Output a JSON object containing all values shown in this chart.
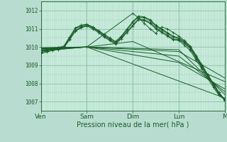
{
  "title": "Pression niveau de la mer( hPa )",
  "bg_color": "#b8ddd0",
  "plot_bg_color": "#c8eede",
  "grid_color_major": "#88bbaa",
  "grid_color_minor": "#a8ccbc",
  "line_color": "#1a5c2a",
  "ylim": [
    1006.5,
    1012.5
  ],
  "yticks": [
    1007,
    1008,
    1009,
    1010,
    1011,
    1012
  ],
  "xlim": [
    0,
    96
  ],
  "xtick_labels": [
    "Ven",
    "Sam",
    "Dim",
    "Lun",
    "M"
  ],
  "xtick_positions": [
    0,
    24,
    48,
    72,
    96
  ],
  "lines": [
    {
      "x": [
        0,
        3,
        6,
        9,
        12,
        15,
        18,
        21,
        24,
        27,
        30,
        33,
        36,
        39,
        42,
        45,
        48,
        51,
        54,
        57,
        60,
        63,
        66,
        69,
        72,
        75,
        78,
        81,
        84,
        87,
        90,
        93,
        96
      ],
      "y": [
        1009.8,
        1009.85,
        1009.9,
        1009.95,
        1010.0,
        1010.5,
        1011.0,
        1011.15,
        1011.2,
        1011.1,
        1010.9,
        1010.7,
        1010.5,
        1010.3,
        1010.6,
        1011.0,
        1011.4,
        1011.7,
        1011.65,
        1011.5,
        1011.2,
        1011.0,
        1010.8,
        1010.6,
        1010.5,
        1010.3,
        1010.0,
        1009.5,
        1009.0,
        1008.5,
        1008.0,
        1007.5,
        1007.05
      ],
      "markers": true
    },
    {
      "x": [
        0,
        3,
        6,
        9,
        12,
        15,
        18,
        21,
        24,
        27,
        30,
        33,
        36,
        39,
        42,
        45,
        48,
        51,
        54,
        57,
        60,
        63,
        66,
        69,
        72,
        75,
        78,
        81,
        84,
        87,
        90,
        93,
        96
      ],
      "y": [
        1009.75,
        1009.82,
        1009.9,
        1009.97,
        1010.05,
        1010.55,
        1011.05,
        1011.2,
        1011.25,
        1011.1,
        1010.9,
        1010.65,
        1010.45,
        1010.25,
        1010.55,
        1010.95,
        1011.35,
        1011.65,
        1011.6,
        1011.45,
        1011.15,
        1010.95,
        1010.75,
        1010.55,
        1010.45,
        1010.25,
        1009.95,
        1009.45,
        1008.95,
        1008.45,
        1007.95,
        1007.45,
        1007.1
      ],
      "markers": true
    },
    {
      "x": [
        0,
        3,
        6,
        9,
        12,
        15,
        18,
        21,
        24,
        27,
        30,
        33,
        36,
        39,
        42,
        45,
        48,
        51,
        54,
        57,
        60,
        63,
        66,
        69,
        72,
        75,
        78,
        81,
        84,
        87,
        90,
        93,
        96
      ],
      "y": [
        1009.7,
        1009.78,
        1009.85,
        1009.92,
        1010.0,
        1010.45,
        1010.9,
        1011.1,
        1011.2,
        1011.05,
        1010.85,
        1010.6,
        1010.4,
        1010.2,
        1010.5,
        1010.85,
        1011.2,
        1011.55,
        1011.5,
        1011.35,
        1011.05,
        1010.85,
        1010.65,
        1010.45,
        1010.4,
        1010.2,
        1009.9,
        1009.4,
        1008.9,
        1008.4,
        1007.9,
        1007.4,
        1007.15
      ],
      "markers": true
    },
    {
      "x": [
        0,
        24,
        48,
        51,
        54,
        57,
        60,
        63,
        66,
        69,
        72,
        75,
        78,
        81,
        84,
        87,
        90,
        93,
        96
      ],
      "y": [
        1009.9,
        1010.0,
        1011.85,
        1011.6,
        1011.3,
        1011.0,
        1010.75,
        1011.1,
        1011.0,
        1010.8,
        1010.6,
        1010.35,
        1010.05,
        1009.55,
        1009.05,
        1008.5,
        1008.0,
        1007.5,
        1007.1
      ],
      "markers": true
    },
    {
      "x": [
        0,
        3,
        6,
        9,
        12,
        15,
        18,
        21,
        24,
        27,
        30,
        33,
        36,
        39,
        42,
        45,
        48,
        51,
        54,
        57,
        60,
        63,
        66,
        69,
        72,
        75,
        78,
        81,
        84,
        87,
        90,
        93,
        96
      ],
      "y": [
        1009.65,
        1009.72,
        1009.8,
        1009.87,
        1009.95,
        1010.4,
        1010.85,
        1011.05,
        1011.15,
        1011.0,
        1010.8,
        1010.55,
        1010.35,
        1010.15,
        1010.45,
        1010.8,
        1011.15,
        1011.5,
        1011.45,
        1011.3,
        1011.0,
        1010.8,
        1010.6,
        1010.4,
        1010.35,
        1010.1,
        1009.8,
        1009.3,
        1008.8,
        1008.3,
        1007.8,
        1007.35,
        1007.1
      ],
      "markers": true
    },
    {
      "x": [
        0,
        24,
        96
      ],
      "y": [
        1009.95,
        1010.0,
        1007.2
      ],
      "markers": false
    },
    {
      "x": [
        0,
        24,
        72,
        96
      ],
      "y": [
        1009.95,
        1010.0,
        1009.85,
        1007.4
      ],
      "markers": false
    },
    {
      "x": [
        0,
        24,
        72,
        96
      ],
      "y": [
        1009.9,
        1010.0,
        1009.5,
        1007.55
      ],
      "markers": false
    },
    {
      "x": [
        0,
        24,
        72,
        96
      ],
      "y": [
        1009.85,
        1010.0,
        1009.15,
        1007.7
      ],
      "markers": false
    },
    {
      "x": [
        0,
        24,
        72,
        96
      ],
      "y": [
        1009.8,
        1010.0,
        1009.75,
        1008.3
      ],
      "markers": false
    },
    {
      "x": [
        0,
        24,
        48,
        96
      ],
      "y": [
        1009.78,
        1010.0,
        1010.3,
        1008.1
      ],
      "markers": false
    }
  ]
}
